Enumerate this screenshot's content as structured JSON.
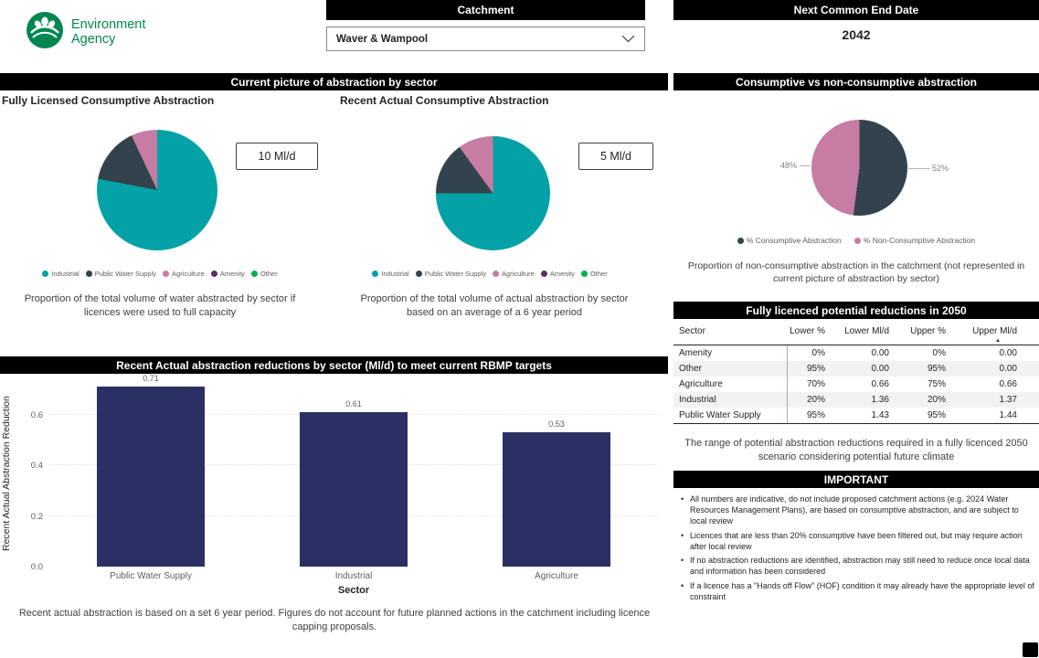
{
  "logo": {
    "line1": "Environment",
    "line2": "Agency"
  },
  "top": {
    "catchment_title": "Catchment",
    "catchment_value": "Waver & Wampool",
    "end_date_title": "Next Common End Date",
    "end_date_value": "2042"
  },
  "colors": {
    "teal": "#04A2A6",
    "slate": "#33434D",
    "pink": "#C77CA4",
    "purple": "#5B2D62",
    "green": "#00B050",
    "bar": "#2B3064",
    "header_bg": "#000000"
  },
  "sector_legend": [
    {
      "label": "Industrial",
      "color": "#04A2A6"
    },
    {
      "label": "Public Water Supply",
      "color": "#33434D"
    },
    {
      "label": "Agriculture",
      "color": "#C77CA4"
    },
    {
      "label": "Amenity",
      "color": "#5B2D62"
    },
    {
      "label": "Other",
      "color": "#00B050"
    }
  ],
  "section_current": {
    "title": "Current picture of abstraction by sector",
    "left_chart_title": "Fully Licensed Consumptive Abstraction",
    "left_badge": "10 Ml/d",
    "left_caption": "Proportion of the total volume of water abstracted by sector if licences were used to full capacity",
    "right_chart_title": "Recent Actual Consumptive Abstraction",
    "right_badge": "5 Ml/d",
    "right_caption": "Proportion of the total volume of actual abstraction by sector based on an average of a 6 year period"
  },
  "section_bar": {
    "title": "Recent Actual abstraction reductions by sector (Ml/d) to meet current RBMP targets",
    "ylabel": "Recent Actual Abstraction Reduction",
    "xlabel": "Sector",
    "caption": "Recent actual abstraction is based on a set 6 year period. Figures do not account for future planned actions in the catchment including licence capping proposals."
  },
  "section_consumptive": {
    "title": "Consumptive vs non-consumptive abstraction",
    "left_label": "48%",
    "right_label": "52%",
    "legend": [
      {
        "label": "% Consumptive Abstraction",
        "color": "#33434D"
      },
      {
        "label": "% Non-Consumptive Abstraction",
        "color": "#C77CA4"
      }
    ],
    "caption": "Proportion of non-consumptive abstraction in the catchment (not represented in current picture of abstraction by sector)"
  },
  "section_table": {
    "title": "Fully licenced potential reductions in 2050",
    "columns": [
      "Sector",
      "Lower %",
      "Lower Ml/d",
      "Upper %",
      "Upper Ml/d"
    ],
    "rows": [
      [
        "Amenity",
        "0%",
        "0.00",
        "0%",
        "0.00"
      ],
      [
        "Other",
        "95%",
        "0.00",
        "95%",
        "0.00"
      ],
      [
        "Agriculture",
        "70%",
        "0.66",
        "75%",
        "0.66"
      ],
      [
        "Industrial",
        "20%",
        "1.36",
        "20%",
        "1.37"
      ],
      [
        "Public Water Supply",
        "95%",
        "1.43",
        "95%",
        "1.44"
      ]
    ],
    "caption": "The range of potential abstraction reductions required in a fully licenced 2050 scenario considering potential future climate"
  },
  "section_important": {
    "title": "IMPORTANT",
    "bullets": [
      "All numbers are indicative, do not include proposed catchment actions (e.g. 2024 Water Resources Management Plans), are based on consumptive abstraction, and are subject to local review",
      "Licences that are less than 20% consumptive have been filtered out, but may require action after local review",
      "If no abstraction reductions are identified, abstraction may still need to reduce once local data and information has been considered",
      "If a licence has a \"Hands off Flow\" (HOF) condition it may already have the appropriate level of constraint"
    ]
  },
  "chart_data": [
    {
      "type": "pie",
      "title": "Fully Licensed Consumptive Abstraction",
      "total_label": "10 Ml/d",
      "labels": [
        "Industrial",
        "Public Water Supply",
        "Agriculture",
        "Amenity",
        "Other"
      ],
      "values_pct": [
        78,
        15,
        7,
        0,
        0
      ],
      "colors": [
        "#04A2A6",
        "#33434D",
        "#C77CA4",
        "#5B2D62",
        "#00B050"
      ],
      "legend_position": "bottom"
    },
    {
      "type": "pie",
      "title": "Recent Actual Consumptive Abstraction",
      "total_label": "5 Ml/d",
      "labels": [
        "Industrial",
        "Public Water Supply",
        "Agriculture",
        "Amenity",
        "Other"
      ],
      "values_pct": [
        75,
        15,
        10,
        0,
        0
      ],
      "colors": [
        "#04A2A6",
        "#33434D",
        "#C77CA4",
        "#5B2D62",
        "#00B050"
      ],
      "legend_position": "bottom"
    },
    {
      "type": "pie",
      "title": "Consumptive vs non-consumptive abstraction",
      "labels": [
        "% Consumptive Abstraction",
        "% Non-Consumptive Abstraction"
      ],
      "values_pct": [
        52,
        48
      ],
      "colors": [
        "#33434D",
        "#C77CA4"
      ],
      "data_labels": [
        "52%",
        "48%"
      ],
      "legend_position": "bottom"
    },
    {
      "type": "bar",
      "title": "Recent Actual abstraction reductions by sector (Ml/d) to meet current RBMP targets",
      "categories": [
        "Public Water Supply",
        "Industrial",
        "Agriculture"
      ],
      "values": [
        0.71,
        0.61,
        0.53
      ],
      "xlabel": "Sector",
      "ylabel": "Recent Actual Abstraction Reduction",
      "yticks": [
        0,
        0.2,
        0.4,
        0.6
      ],
      "ylim": [
        0,
        0.75
      ],
      "grid": true
    },
    {
      "type": "table",
      "title": "Fully licenced potential reductions in 2050",
      "columns": [
        "Sector",
        "Lower %",
        "Lower Ml/d",
        "Upper %",
        "Upper Ml/d"
      ],
      "rows": [
        [
          "Amenity",
          "0%",
          "0.00",
          "0%",
          "0.00"
        ],
        [
          "Other",
          "95%",
          "0.00",
          "95%",
          "0.00"
        ],
        [
          "Agriculture",
          "70%",
          "0.66",
          "75%",
          "0.66"
        ],
        [
          "Industrial",
          "20%",
          "1.36",
          "20%",
          "1.37"
        ],
        [
          "Public Water Supply",
          "95%",
          "1.43",
          "95%",
          "1.44"
        ]
      ]
    }
  ]
}
